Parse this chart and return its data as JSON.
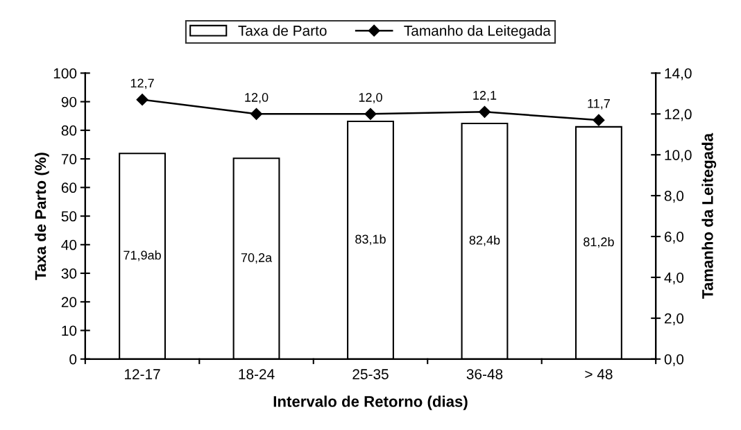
{
  "chart_data": {
    "type": "bar",
    "xlabel": "Intervalo de Retorno (dias)",
    "ylabel": "Taxa de Parto (%)",
    "y2label": "Tamanho da Leitegada",
    "categories": [
      "12-17",
      "18-24",
      "25-35",
      "36-48",
      "> 48"
    ],
    "series": [
      {
        "name": "Taxa de Parto",
        "color": "#ffffff",
        "values": [
          71.9,
          70.2,
          83.1,
          82.4,
          81.2
        ],
        "value_labels": [
          "71,9ab",
          "70,2a",
          "83,1b",
          "82,4b",
          "81,2b"
        ]
      },
      {
        "name": "Tamanho da Leitegada",
        "type": "line",
        "axis": "y2",
        "color": "#000000",
        "marker": "diamond",
        "values": [
          12.7,
          12.0,
          12.0,
          12.1,
          11.7
        ],
        "value_labels": [
          "12,7",
          "12,0",
          "12,0",
          "12,1",
          "11,7"
        ]
      }
    ],
    "ylim": [
      0,
      100
    ],
    "yticks": [
      0,
      10,
      20,
      30,
      40,
      50,
      60,
      70,
      80,
      90,
      100
    ],
    "y2lim": [
      0,
      14
    ],
    "y2ticks": [
      {
        "value": 0,
        "label": "0,0"
      },
      {
        "value": 2,
        "label": "2,0"
      },
      {
        "value": 4,
        "label": "4,0"
      },
      {
        "value": 6,
        "label": "6,0"
      },
      {
        "value": 8,
        "label": "8,0"
      },
      {
        "value": 10,
        "label": "10,0"
      },
      {
        "value": 12,
        "label": "12,0"
      },
      {
        "value": 14,
        "label": "14,0"
      }
    ],
    "legend": "top",
    "grid": false
  }
}
